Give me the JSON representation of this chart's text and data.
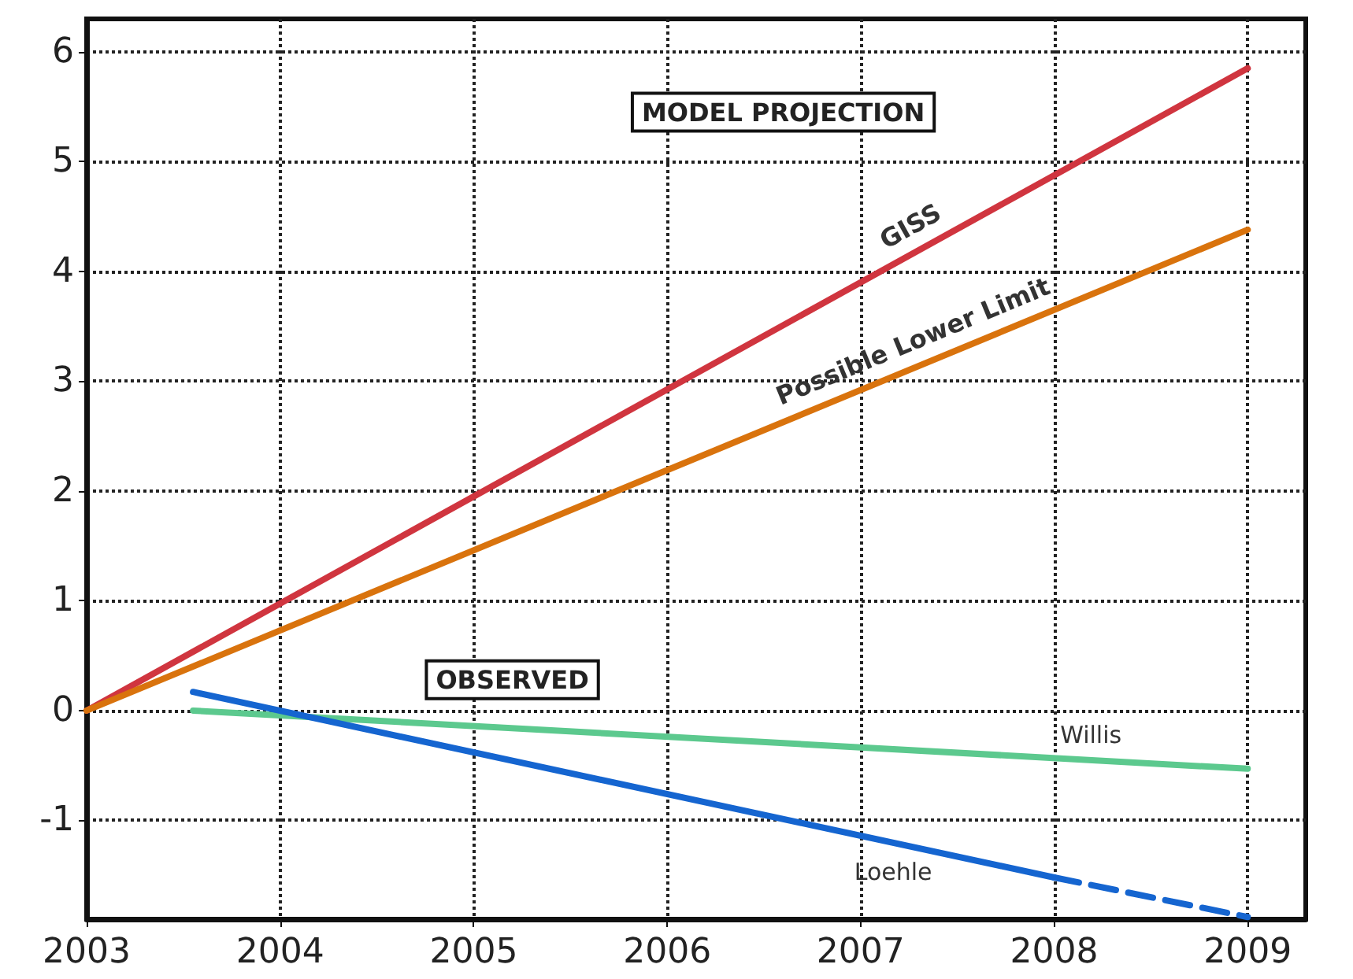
{
  "chart_data": {
    "type": "line",
    "xlim": [
      2003,
      2009.3
    ],
    "xticks": [
      2003,
      2004,
      2005,
      2006,
      2007,
      2008,
      2009
    ],
    "ylim": [
      -1.9,
      6.3
    ],
    "yticks": [
      -1,
      0,
      1,
      2,
      3,
      4,
      5,
      6
    ],
    "grid": true,
    "legend": false,
    "marker": "none",
    "annotations": [
      "MODEL PROJECTION",
      "OBSERVED"
    ],
    "series": [
      {
        "name": "GISS",
        "color": "#d0353f",
        "x": [
          2003,
          2009
        ],
        "values": [
          0,
          5.85
        ]
      },
      {
        "name": "Possible Lower Limit",
        "color": "#d9730d",
        "x": [
          2003,
          2009
        ],
        "values": [
          0,
          4.38
        ]
      },
      {
        "name": "Willis",
        "color": "#5cc98e",
        "x": [
          2003.55,
          2009
        ],
        "values": [
          0,
          -0.53
        ]
      },
      {
        "name": "Loehle",
        "color": "#1565d0",
        "x": [
          2003.55,
          2008
        ],
        "values": [
          0.17,
          -1.52
        ]
      },
      {
        "color": "#1565d0",
        "line_style": "dashed",
        "x": [
          2008,
          2009
        ],
        "values": [
          -1.52,
          -1.88
        ]
      }
    ]
  }
}
